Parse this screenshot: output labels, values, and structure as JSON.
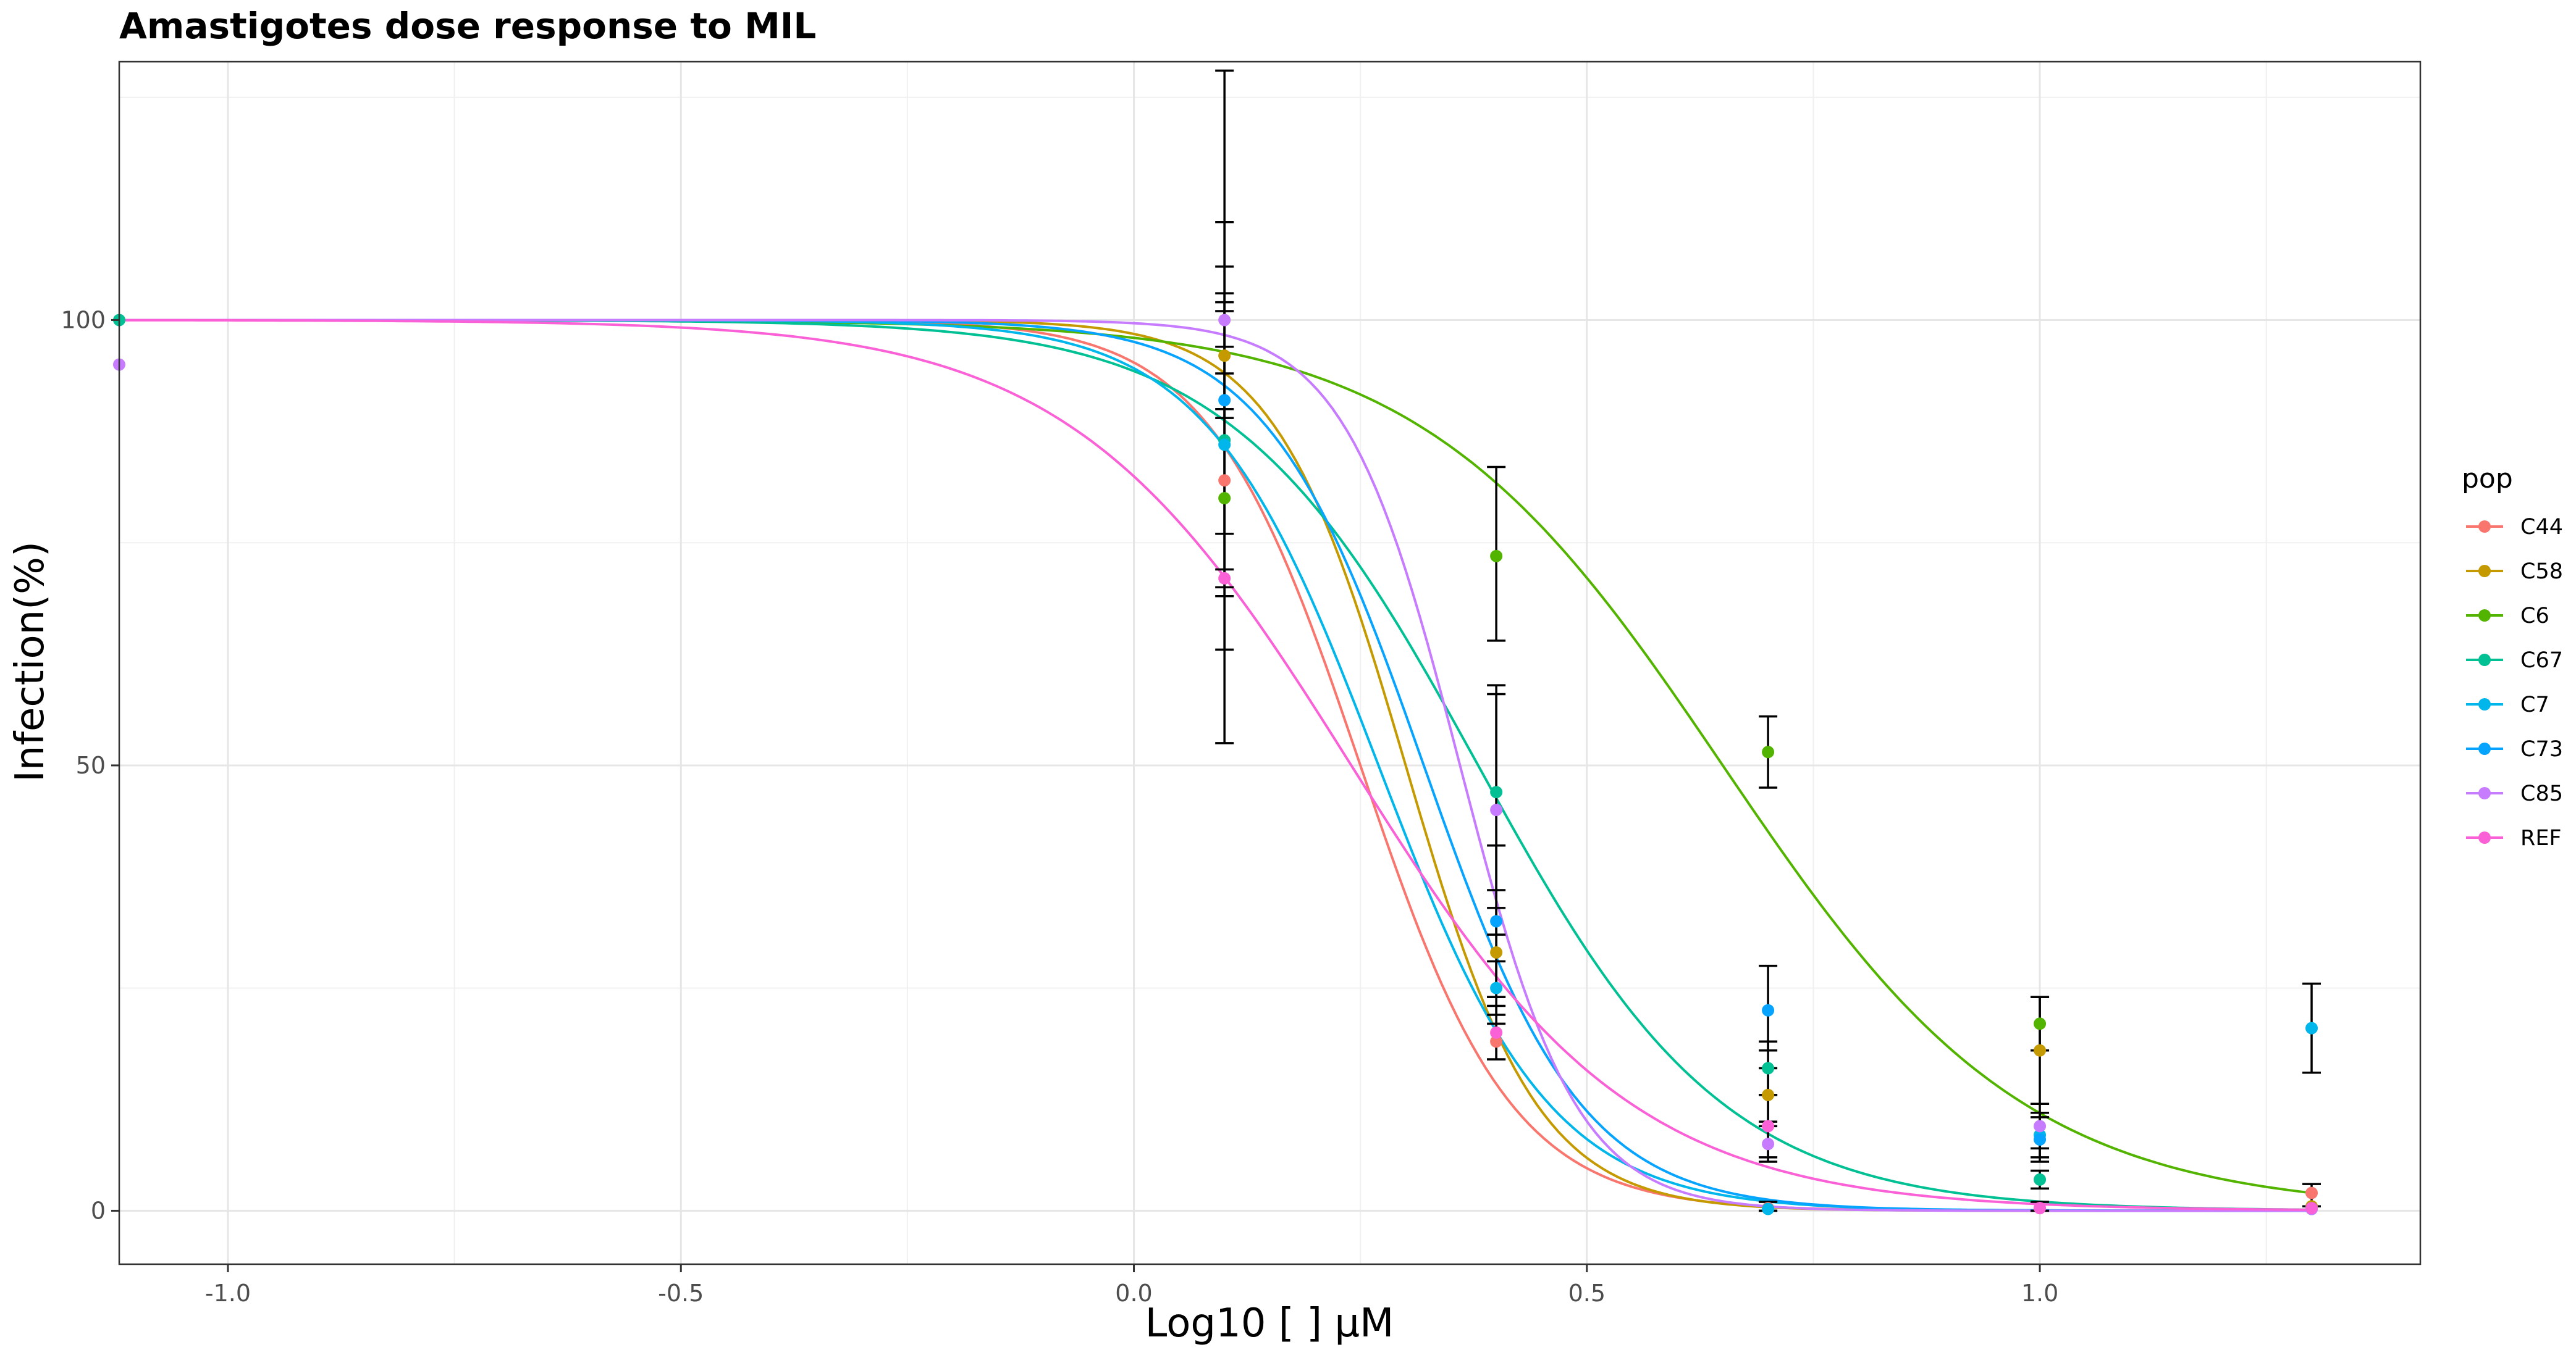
{
  "chart_data": {
    "type": "line",
    "title": "Amastigotes dose response to MIL",
    "xlabel": "Log10 [ ] µM",
    "ylabel": "Infection(%)",
    "xlim": [
      -1.12,
      1.42
    ],
    "ylim": [
      -6,
      129
    ],
    "x_ticks": [
      -1.0,
      -0.5,
      0.0,
      0.5,
      1.0
    ],
    "x_tick_labels": [
      "-1.0",
      "-0.5",
      "0.0",
      "0.5",
      "1.0"
    ],
    "y_ticks": [
      0,
      50,
      100
    ],
    "y_tick_labels": [
      "0",
      "50",
      "100"
    ],
    "grid": true,
    "legend_title": "pop",
    "legend_position": "right",
    "series": [
      {
        "name": "C44",
        "color": "#F8766D",
        "ec50": 0.25,
        "hill": 5.2,
        "points": [
          [
            0.1,
            82
          ],
          [
            0.4,
            19
          ],
          [
            0.7,
            0.3
          ],
          [
            1.0,
            0.3
          ],
          [
            1.3,
            2.0
          ]
        ],
        "errors": [
          [
            0.1,
            70,
            94
          ],
          [
            0.4,
            17,
            21
          ],
          [
            0.7,
            0,
            1
          ],
          [
            1.3,
            0.5,
            3
          ]
        ]
      },
      {
        "name": "C58",
        "color": "#C49A00",
        "ec50": 0.3,
        "hill": 6.0,
        "points": [
          [
            0.1,
            96
          ],
          [
            0.4,
            29
          ],
          [
            0.7,
            13
          ],
          [
            1.0,
            18
          ],
          [
            1.3,
            0.5
          ]
        ],
        "errors": [
          [
            0.1,
            90,
            102
          ],
          [
            0.4,
            24,
            34
          ],
          [
            0.7,
            10,
            16
          ],
          [
            1.0,
            12,
            24
          ]
        ]
      },
      {
        "name": "C6",
        "color": "#53B400",
        "ec50": 0.65,
        "hill": 2.6,
        "points": [
          [
            0.1,
            80
          ],
          [
            0.4,
            73.5
          ],
          [
            0.7,
            51.5
          ],
          [
            1.0,
            21
          ],
          [
            1.3,
            0.3
          ]
        ],
        "errors": [
          [
            0.1,
            63,
            97
          ],
          [
            0.4,
            64,
            83.5
          ],
          [
            0.7,
            47.5,
            55.5
          ],
          [
            1.0,
            18,
            24
          ]
        ]
      },
      {
        "name": "C67",
        "color": "#00C094",
        "ec50": 0.38,
        "hill": 3.2,
        "points": [
          [
            0.1,
            86.5
          ],
          [
            0.4,
            47
          ],
          [
            0.7,
            16
          ],
          [
            1.0,
            3.5
          ],
          [
            1.3,
            0.2
          ]
        ],
        "errors": [
          [
            0.1,
            72,
            101
          ],
          [
            0.4,
            36,
            58
          ],
          [
            0.7,
            13,
            19
          ],
          [
            1.0,
            2.5,
            4.5
          ]
        ]
      },
      {
        "name": "C7",
        "color": "#00B6EB",
        "ec50": 0.27,
        "hill": 4.6,
        "points": [
          [
            0.1,
            86
          ],
          [
            0.4,
            25
          ],
          [
            0.7,
            0.2
          ],
          [
            1.0,
            8.5
          ],
          [
            1.3,
            20.5
          ]
        ],
        "errors": [
          [
            0.1,
            69,
            103
          ],
          [
            0.4,
            22,
            28
          ],
          [
            0.7,
            0,
            1
          ],
          [
            1.0,
            6,
            11
          ],
          [
            1.3,
            15.5,
            25.5
          ]
        ]
      },
      {
        "name": "C73",
        "color": "#06A4FF",
        "ec50": 0.32,
        "hill": 5.0,
        "points": [
          [
            0.1,
            91
          ],
          [
            0.4,
            32.5
          ],
          [
            0.7,
            22.5
          ],
          [
            1.0,
            8
          ],
          [
            1.3,
            0.3
          ]
        ],
        "errors": [
          [
            0.1,
            76,
            106
          ],
          [
            0.4,
            24,
            41
          ],
          [
            0.7,
            18,
            27.5
          ],
          [
            1.0,
            5.5,
            10.5
          ]
        ]
      },
      {
        "name": "C85",
        "color": "#C77CFF",
        "ec50": 0.36,
        "hill": 6.8,
        "points": [
          [
            0.1,
            100
          ],
          [
            0.4,
            45
          ],
          [
            0.7,
            7.5
          ],
          [
            1.0,
            9.5
          ],
          [
            1.3,
            0.2
          ]
        ],
        "errors": [
          [
            0.1,
            89,
            111
          ],
          [
            0.4,
            31,
            59
          ],
          [
            0.7,
            5.5,
            9.5
          ],
          [
            1.0,
            7,
            12
          ]
        ]
      },
      {
        "name": "REF",
        "color": "#FB61D7",
        "ec50": 0.24,
        "hill": 2.8,
        "points": [
          [
            0.1,
            71
          ],
          [
            0.4,
            20
          ],
          [
            0.7,
            9.5
          ],
          [
            1.0,
            0.3
          ],
          [
            1.3,
            0.3
          ]
        ],
        "errors": [
          [
            0.1,
            52.5,
            128
          ],
          [
            0.4,
            17,
            23
          ],
          [
            0.7,
            6,
            13
          ],
          [
            1.0,
            0,
            1
          ]
        ]
      }
    ],
    "extra_points": [
      {
        "series": "C67",
        "x": -1.12,
        "y": 100
      },
      {
        "series": "C85",
        "x": -1.12,
        "y": 95
      }
    ]
  }
}
